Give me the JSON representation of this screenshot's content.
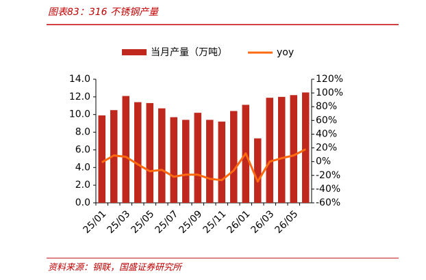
{
  "chart_data": {
    "type": "bar_line",
    "title": "图表83：316 不锈钢产量",
    "source": "资料来源：钢联，国盛证券研究所",
    "categories": [
      "25/01",
      null,
      "25/03",
      null,
      "25/05",
      null,
      "25/07",
      null,
      "25/09",
      null,
      "25/11",
      null,
      "26/01",
      null,
      "26/03",
      null,
      "26/05",
      null
    ],
    "series": [
      {
        "name": "当月产量（万吨）",
        "color": "#c0281e",
        "type": "bar",
        "values": [
          9.9,
          10.5,
          12.1,
          11.4,
          11.3,
          10.7,
          9.7,
          9.4,
          10.2,
          9.4,
          9.2,
          10.4,
          11.1,
          7.3,
          11.9,
          12.0,
          12.2,
          12.5
        ]
      },
      {
        "name": "yoy",
        "color": "#ff6a10",
        "type": "line",
        "axis": "y2",
        "values": [
          -1,
          9,
          7,
          -4,
          -14,
          -12,
          -22,
          -19,
          -19,
          -25,
          -27,
          -13,
          12,
          -29,
          0,
          5,
          9,
          18
        ]
      }
    ],
    "ylim": [
      0,
      14
    ],
    "yticks": [
      {
        "value": 0,
        "label": "0.0"
      },
      {
        "value": 2,
        "label": "2.0"
      },
      {
        "value": 4,
        "label": "4.0"
      },
      {
        "value": 6,
        "label": "6.0"
      },
      {
        "value": 8,
        "label": "8.0"
      },
      {
        "value": 10,
        "label": "10.0"
      },
      {
        "value": 12,
        "label": "12.0"
      },
      {
        "value": 14,
        "label": "14.0"
      }
    ],
    "y2lim": [
      -60,
      120
    ],
    "y2ticks": [
      {
        "value": -60,
        "label": "-60%"
      },
      {
        "value": -40,
        "label": "-40%"
      },
      {
        "value": -20,
        "label": "-20%"
      },
      {
        "value": 0,
        "label": "0%"
      },
      {
        "value": 20,
        "label": "20%"
      },
      {
        "value": 40,
        "label": "40%"
      },
      {
        "value": 60,
        "label": "60%"
      },
      {
        "value": 80,
        "label": "80%"
      },
      {
        "value": 100,
        "label": "100%"
      },
      {
        "value": 120,
        "label": "120%"
      }
    ],
    "legend": "top"
  }
}
